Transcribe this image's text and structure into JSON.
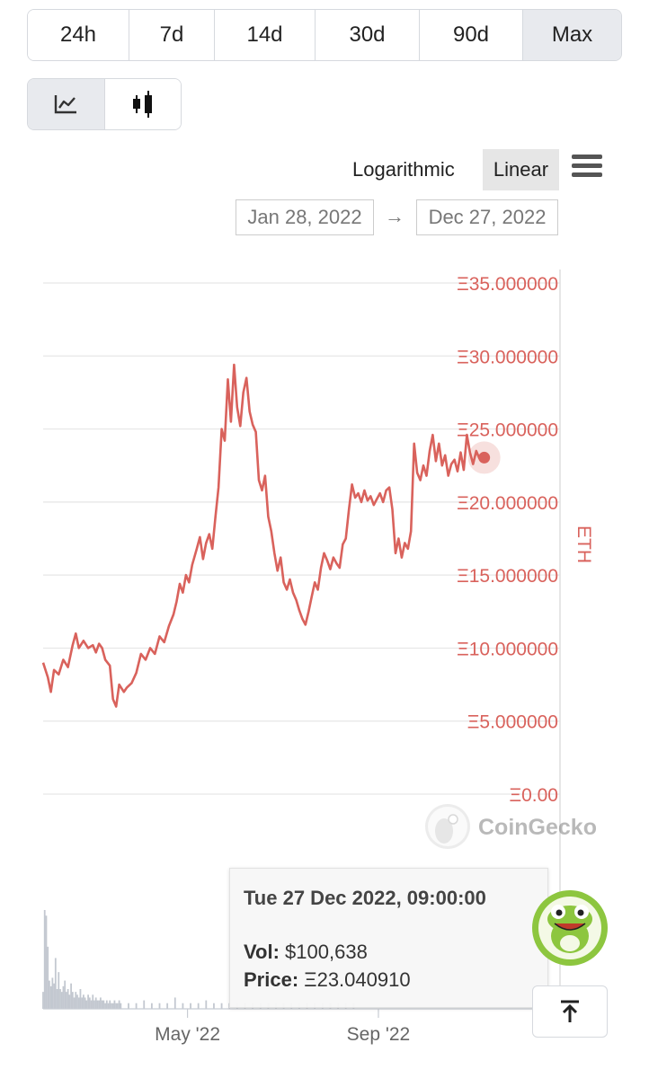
{
  "ranges": [
    "24h",
    "7d",
    "14d",
    "30d",
    "90d",
    "Max"
  ],
  "active_range": "Max",
  "chart_type_icons": [
    "line-chart-icon",
    "candlestick-icon"
  ],
  "scale": {
    "log_label": "Logarithmic",
    "linear_label": "Linear",
    "active": "Linear"
  },
  "date_range": {
    "from": "Jan 28, 2022",
    "arrow": "→",
    "to": "Dec 27, 2022"
  },
  "watermark": "CoinGecko",
  "tooltip": {
    "date": "Tue 27 Dec 2022, 09:00:00",
    "vol_label": "Vol:",
    "vol_value": "$100,638",
    "price_label": "Price:",
    "price_value": "Ξ23.040910"
  },
  "colors": {
    "line": "#d9625c",
    "axis_text": "#d9625c",
    "grid": "#e6e6e6",
    "volume": "#c3c8d0"
  },
  "chart_data": {
    "type": "line",
    "title": "",
    "ylabel": "ETH",
    "ylim": [
      0,
      35
    ],
    "yticks": [
      {
        "value": 35,
        "label": "Ξ35.000000"
      },
      {
        "value": 30,
        "label": "Ξ30.000000"
      },
      {
        "value": 25,
        "label": "Ξ25.000000"
      },
      {
        "value": 20,
        "label": "Ξ20.000000"
      },
      {
        "value": 15,
        "label": "Ξ15.000000"
      },
      {
        "value": 10,
        "label": "Ξ10.000000"
      },
      {
        "value": 5,
        "label": "Ξ5.000000"
      },
      {
        "value": 0,
        "label": "Ξ0.00"
      }
    ],
    "xlim": [
      0,
      333
    ],
    "xticks": [
      {
        "x": 93,
        "label": "May '22"
      },
      {
        "x": 216,
        "label": "Sep '22"
      }
    ],
    "series": [
      {
        "name": "Price",
        "points": [
          [
            0,
            9.0
          ],
          [
            3,
            8.0
          ],
          [
            5,
            7.0
          ],
          [
            7,
            8.5
          ],
          [
            10,
            8.2
          ],
          [
            13,
            9.2
          ],
          [
            16,
            8.7
          ],
          [
            19,
            10.2
          ],
          [
            21,
            11.0
          ],
          [
            23,
            10.0
          ],
          [
            26,
            10.5
          ],
          [
            29,
            10.0
          ],
          [
            32,
            10.2
          ],
          [
            34,
            9.7
          ],
          [
            36,
            10.3
          ],
          [
            38,
            10.0
          ],
          [
            40,
            9.2
          ],
          [
            43,
            8.8
          ],
          [
            45,
            6.5
          ],
          [
            47,
            6.0
          ],
          [
            49,
            7.5
          ],
          [
            52,
            7.0
          ],
          [
            54,
            7.3
          ],
          [
            57,
            7.6
          ],
          [
            60,
            8.3
          ],
          [
            63,
            9.6
          ],
          [
            66,
            9.2
          ],
          [
            69,
            10.0
          ],
          [
            72,
            9.6
          ],
          [
            75,
            10.8
          ],
          [
            78,
            10.4
          ],
          [
            81,
            11.5
          ],
          [
            84,
            12.3
          ],
          [
            86,
            13.2
          ],
          [
            88,
            14.4
          ],
          [
            90,
            13.8
          ],
          [
            92,
            15.0
          ],
          [
            94,
            14.5
          ],
          [
            96,
            15.7
          ],
          [
            99,
            16.8
          ],
          [
            101,
            17.6
          ],
          [
            103,
            16.1
          ],
          [
            105,
            17.2
          ],
          [
            107,
            17.8
          ],
          [
            109,
            16.8
          ],
          [
            111,
            19.0
          ],
          [
            113,
            21.0
          ],
          [
            115,
            25.0
          ],
          [
            117,
            24.2
          ],
          [
            119,
            28.4
          ],
          [
            121,
            25.5
          ],
          [
            123,
            29.4
          ],
          [
            125,
            26.5
          ],
          [
            127,
            25.2
          ],
          [
            129,
            27.5
          ],
          [
            131,
            28.5
          ],
          [
            133,
            26.2
          ],
          [
            135,
            25.3
          ],
          [
            137,
            24.8
          ],
          [
            139,
            21.5
          ],
          [
            141,
            20.8
          ],
          [
            143,
            21.8
          ],
          [
            145,
            19.0
          ],
          [
            147,
            18.0
          ],
          [
            149,
            16.5
          ],
          [
            151,
            15.3
          ],
          [
            153,
            16.2
          ],
          [
            155,
            14.5
          ],
          [
            157,
            14.0
          ],
          [
            159,
            14.7
          ],
          [
            161,
            13.8
          ],
          [
            163,
            13.3
          ],
          [
            165,
            12.6
          ],
          [
            167,
            12.0
          ],
          [
            169,
            11.6
          ],
          [
            171,
            12.5
          ],
          [
            173,
            13.5
          ],
          [
            175,
            14.5
          ],
          [
            177,
            14.0
          ],
          [
            179,
            15.5
          ],
          [
            181,
            16.5
          ],
          [
            183,
            16.0
          ],
          [
            185,
            15.4
          ],
          [
            187,
            16.2
          ],
          [
            189,
            15.8
          ],
          [
            191,
            15.5
          ],
          [
            193,
            17.1
          ],
          [
            195,
            17.5
          ],
          [
            197,
            19.5
          ],
          [
            199,
            21.2
          ],
          [
            201,
            20.3
          ],
          [
            203,
            20.6
          ],
          [
            205,
            20.0
          ],
          [
            207,
            20.8
          ],
          [
            209,
            20.1
          ],
          [
            211,
            20.4
          ],
          [
            213,
            19.8
          ],
          [
            215,
            20.2
          ],
          [
            217,
            20.6
          ],
          [
            219,
            20.0
          ],
          [
            221,
            20.8
          ],
          [
            223,
            21.0
          ],
          [
            225,
            19.5
          ],
          [
            227,
            16.5
          ],
          [
            229,
            17.5
          ],
          [
            231,
            16.2
          ],
          [
            233,
            17.2
          ],
          [
            235,
            16.8
          ],
          [
            237,
            18.0
          ],
          [
            239,
            24.0
          ],
          [
            241,
            22.0
          ],
          [
            243,
            21.5
          ],
          [
            245,
            22.5
          ],
          [
            247,
            21.8
          ],
          [
            249,
            23.5
          ],
          [
            251,
            24.6
          ],
          [
            253,
            22.8
          ],
          [
            255,
            24.0
          ],
          [
            257,
            22.5
          ],
          [
            259,
            23.2
          ],
          [
            261,
            21.8
          ],
          [
            263,
            22.6
          ],
          [
            265,
            22.9
          ],
          [
            267,
            22.1
          ],
          [
            269,
            23.4
          ],
          [
            271,
            22.2
          ],
          [
            273,
            24.6
          ],
          [
            275,
            23.4
          ],
          [
            277,
            22.6
          ],
          [
            279,
            23.5
          ],
          [
            281,
            23.0
          ],
          [
            283,
            23.04
          ]
        ]
      }
    ],
    "volume": {
      "name": "Vol",
      "x": [
        0,
        1,
        2,
        3,
        4,
        5,
        6,
        7,
        8,
        9,
        10,
        11,
        12,
        13,
        14,
        15,
        16,
        17,
        18,
        19,
        20,
        21,
        22,
        23,
        24,
        25,
        26,
        27,
        28,
        29,
        30,
        31,
        32,
        33,
        34,
        35,
        36,
        37,
        38,
        39,
        40,
        41,
        42,
        43,
        44,
        45,
        46,
        47,
        48,
        49,
        50,
        55,
        60,
        65,
        70,
        75,
        80,
        85,
        90,
        95,
        100,
        105,
        110,
        115,
        120,
        125,
        130,
        135,
        140,
        145,
        150,
        155,
        160,
        165,
        170,
        175,
        180,
        185,
        190,
        195,
        200
      ],
      "values": [
        0.6,
        3.5,
        3.3,
        2.2,
        1.0,
        0.8,
        1.1,
        0.9,
        1.8,
        0.7,
        1.3,
        0.7,
        0.6,
        0.8,
        1.0,
        0.6,
        0.7,
        0.5,
        0.9,
        0.6,
        0.4,
        0.6,
        0.5,
        0.4,
        0.7,
        0.4,
        0.5,
        0.4,
        0.3,
        0.5,
        0.4,
        0.3,
        0.5,
        0.3,
        0.4,
        0.3,
        0.3,
        0.4,
        0.3,
        0.3,
        0.2,
        0.3,
        0.2,
        0.3,
        0.2,
        0.2,
        0.3,
        0.2,
        0.2,
        0.3,
        0.2,
        0.2,
        0.2,
        0.3,
        0.2,
        0.2,
        0.2,
        0.4,
        0.2,
        0.2,
        0.2,
        0.3,
        0.2,
        0.2,
        0.2,
        0.2,
        0.2,
        0.2,
        0.2,
        0.2,
        0.2,
        0.2,
        0.2,
        0.2,
        0.2,
        0.2,
        0.2,
        0.2,
        0.2,
        0.2,
        0.2
      ]
    }
  }
}
